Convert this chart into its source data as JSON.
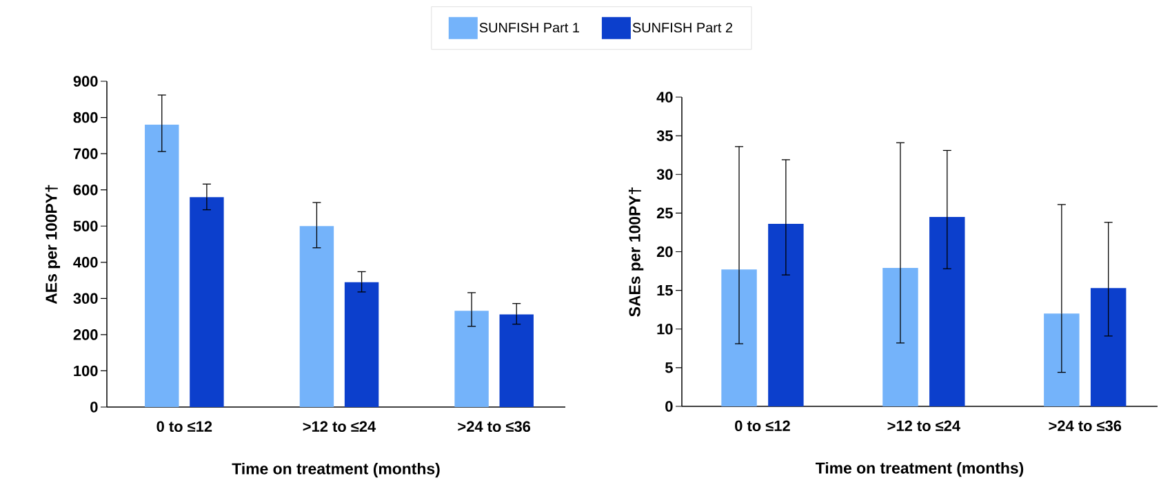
{
  "chart_data": [
    {
      "type": "bar",
      "categories": [
        "0 to ≤12",
        ">12 to ≤24",
        ">24 to ≤36"
      ],
      "xlabel": "Time on treatment (months)",
      "ylabel": "AEs per 100PY†",
      "ylim": [
        0,
        900
      ],
      "yticks": [
        0,
        100,
        200,
        300,
        400,
        500,
        600,
        700,
        800,
        900
      ],
      "legend": "top",
      "series": [
        {
          "name": "SUNFISH Part 1",
          "color": "#74b3fa",
          "values": [
            780,
            500,
            266
          ],
          "errors": [
            [
              706,
              862
            ],
            [
              440,
              565
            ],
            [
              223,
              316
            ]
          ]
        },
        {
          "name": "SUNFISH Part 2",
          "color": "#0c3fcc",
          "values": [
            580,
            345,
            256
          ],
          "errors": [
            [
              545,
              616
            ],
            [
              318,
              374
            ],
            [
              229,
              286
            ]
          ]
        }
      ]
    },
    {
      "type": "bar",
      "categories": [
        "0 to ≤12",
        ">12 to ≤24",
        ">24 to ≤36"
      ],
      "xlabel": "Time on treatment (months)",
      "ylabel": "SAEs per 100PY†",
      "ylim": [
        0,
        40
      ],
      "yticks": [
        0,
        5,
        10,
        15,
        20,
        25,
        30,
        35,
        40
      ],
      "series": [
        {
          "color": "#74b3fa",
          "values": [
            17.7,
            17.9,
            12.0
          ],
          "errors": [
            [
              8.1,
              33.6
            ],
            [
              8.2,
              34.1
            ],
            [
              4.4,
              26.1
            ]
          ]
        },
        {
          "color": "#0c3fcc",
          "values": [
            23.6,
            24.5,
            15.3
          ],
          "errors": [
            [
              17.0,
              31.9
            ],
            [
              17.8,
              33.1
            ],
            [
              9.1,
              23.8
            ]
          ]
        }
      ]
    }
  ]
}
